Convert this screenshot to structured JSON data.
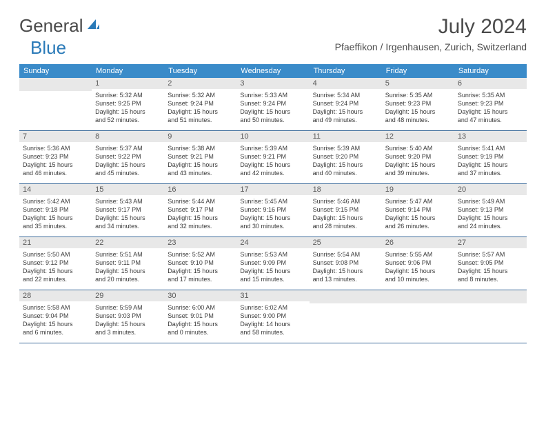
{
  "logo": {
    "general": "General",
    "blue": "Blue"
  },
  "title": "July 2024",
  "location": "Pfaeffikon / Irgenhausen, Zurich, Switzerland",
  "weekdays": [
    "Sunday",
    "Monday",
    "Tuesday",
    "Wednesday",
    "Thursday",
    "Friday",
    "Saturday"
  ],
  "colors": {
    "header_bg": "#3a8bc9",
    "daynum_bg": "#e8e8e8",
    "divider": "#3a6a9a",
    "text": "#4a4a4a",
    "logo_blue": "#2a7ab8"
  },
  "weeks": [
    [
      {
        "num": "",
        "sunrise": "",
        "sunset": "",
        "daylight1": "",
        "daylight2": ""
      },
      {
        "num": "1",
        "sunrise": "Sunrise: 5:32 AM",
        "sunset": "Sunset: 9:25 PM",
        "daylight1": "Daylight: 15 hours",
        "daylight2": "and 52 minutes."
      },
      {
        "num": "2",
        "sunrise": "Sunrise: 5:32 AM",
        "sunset": "Sunset: 9:24 PM",
        "daylight1": "Daylight: 15 hours",
        "daylight2": "and 51 minutes."
      },
      {
        "num": "3",
        "sunrise": "Sunrise: 5:33 AM",
        "sunset": "Sunset: 9:24 PM",
        "daylight1": "Daylight: 15 hours",
        "daylight2": "and 50 minutes."
      },
      {
        "num": "4",
        "sunrise": "Sunrise: 5:34 AM",
        "sunset": "Sunset: 9:24 PM",
        "daylight1": "Daylight: 15 hours",
        "daylight2": "and 49 minutes."
      },
      {
        "num": "5",
        "sunrise": "Sunrise: 5:35 AM",
        "sunset": "Sunset: 9:23 PM",
        "daylight1": "Daylight: 15 hours",
        "daylight2": "and 48 minutes."
      },
      {
        "num": "6",
        "sunrise": "Sunrise: 5:35 AM",
        "sunset": "Sunset: 9:23 PM",
        "daylight1": "Daylight: 15 hours",
        "daylight2": "and 47 minutes."
      }
    ],
    [
      {
        "num": "7",
        "sunrise": "Sunrise: 5:36 AM",
        "sunset": "Sunset: 9:23 PM",
        "daylight1": "Daylight: 15 hours",
        "daylight2": "and 46 minutes."
      },
      {
        "num": "8",
        "sunrise": "Sunrise: 5:37 AM",
        "sunset": "Sunset: 9:22 PM",
        "daylight1": "Daylight: 15 hours",
        "daylight2": "and 45 minutes."
      },
      {
        "num": "9",
        "sunrise": "Sunrise: 5:38 AM",
        "sunset": "Sunset: 9:21 PM",
        "daylight1": "Daylight: 15 hours",
        "daylight2": "and 43 minutes."
      },
      {
        "num": "10",
        "sunrise": "Sunrise: 5:39 AM",
        "sunset": "Sunset: 9:21 PM",
        "daylight1": "Daylight: 15 hours",
        "daylight2": "and 42 minutes."
      },
      {
        "num": "11",
        "sunrise": "Sunrise: 5:39 AM",
        "sunset": "Sunset: 9:20 PM",
        "daylight1": "Daylight: 15 hours",
        "daylight2": "and 40 minutes."
      },
      {
        "num": "12",
        "sunrise": "Sunrise: 5:40 AM",
        "sunset": "Sunset: 9:20 PM",
        "daylight1": "Daylight: 15 hours",
        "daylight2": "and 39 minutes."
      },
      {
        "num": "13",
        "sunrise": "Sunrise: 5:41 AM",
        "sunset": "Sunset: 9:19 PM",
        "daylight1": "Daylight: 15 hours",
        "daylight2": "and 37 minutes."
      }
    ],
    [
      {
        "num": "14",
        "sunrise": "Sunrise: 5:42 AM",
        "sunset": "Sunset: 9:18 PM",
        "daylight1": "Daylight: 15 hours",
        "daylight2": "and 35 minutes."
      },
      {
        "num": "15",
        "sunrise": "Sunrise: 5:43 AM",
        "sunset": "Sunset: 9:17 PM",
        "daylight1": "Daylight: 15 hours",
        "daylight2": "and 34 minutes."
      },
      {
        "num": "16",
        "sunrise": "Sunrise: 5:44 AM",
        "sunset": "Sunset: 9:17 PM",
        "daylight1": "Daylight: 15 hours",
        "daylight2": "and 32 minutes."
      },
      {
        "num": "17",
        "sunrise": "Sunrise: 5:45 AM",
        "sunset": "Sunset: 9:16 PM",
        "daylight1": "Daylight: 15 hours",
        "daylight2": "and 30 minutes."
      },
      {
        "num": "18",
        "sunrise": "Sunrise: 5:46 AM",
        "sunset": "Sunset: 9:15 PM",
        "daylight1": "Daylight: 15 hours",
        "daylight2": "and 28 minutes."
      },
      {
        "num": "19",
        "sunrise": "Sunrise: 5:47 AM",
        "sunset": "Sunset: 9:14 PM",
        "daylight1": "Daylight: 15 hours",
        "daylight2": "and 26 minutes."
      },
      {
        "num": "20",
        "sunrise": "Sunrise: 5:49 AM",
        "sunset": "Sunset: 9:13 PM",
        "daylight1": "Daylight: 15 hours",
        "daylight2": "and 24 minutes."
      }
    ],
    [
      {
        "num": "21",
        "sunrise": "Sunrise: 5:50 AM",
        "sunset": "Sunset: 9:12 PM",
        "daylight1": "Daylight: 15 hours",
        "daylight2": "and 22 minutes."
      },
      {
        "num": "22",
        "sunrise": "Sunrise: 5:51 AM",
        "sunset": "Sunset: 9:11 PM",
        "daylight1": "Daylight: 15 hours",
        "daylight2": "and 20 minutes."
      },
      {
        "num": "23",
        "sunrise": "Sunrise: 5:52 AM",
        "sunset": "Sunset: 9:10 PM",
        "daylight1": "Daylight: 15 hours",
        "daylight2": "and 17 minutes."
      },
      {
        "num": "24",
        "sunrise": "Sunrise: 5:53 AM",
        "sunset": "Sunset: 9:09 PM",
        "daylight1": "Daylight: 15 hours",
        "daylight2": "and 15 minutes."
      },
      {
        "num": "25",
        "sunrise": "Sunrise: 5:54 AM",
        "sunset": "Sunset: 9:08 PM",
        "daylight1": "Daylight: 15 hours",
        "daylight2": "and 13 minutes."
      },
      {
        "num": "26",
        "sunrise": "Sunrise: 5:55 AM",
        "sunset": "Sunset: 9:06 PM",
        "daylight1": "Daylight: 15 hours",
        "daylight2": "and 10 minutes."
      },
      {
        "num": "27",
        "sunrise": "Sunrise: 5:57 AM",
        "sunset": "Sunset: 9:05 PM",
        "daylight1": "Daylight: 15 hours",
        "daylight2": "and 8 minutes."
      }
    ],
    [
      {
        "num": "28",
        "sunrise": "Sunrise: 5:58 AM",
        "sunset": "Sunset: 9:04 PM",
        "daylight1": "Daylight: 15 hours",
        "daylight2": "and 6 minutes."
      },
      {
        "num": "29",
        "sunrise": "Sunrise: 5:59 AM",
        "sunset": "Sunset: 9:03 PM",
        "daylight1": "Daylight: 15 hours",
        "daylight2": "and 3 minutes."
      },
      {
        "num": "30",
        "sunrise": "Sunrise: 6:00 AM",
        "sunset": "Sunset: 9:01 PM",
        "daylight1": "Daylight: 15 hours",
        "daylight2": "and 0 minutes."
      },
      {
        "num": "31",
        "sunrise": "Sunrise: 6:02 AM",
        "sunset": "Sunset: 9:00 PM",
        "daylight1": "Daylight: 14 hours",
        "daylight2": "and 58 minutes."
      },
      {
        "num": "",
        "sunrise": "",
        "sunset": "",
        "daylight1": "",
        "daylight2": ""
      },
      {
        "num": "",
        "sunrise": "",
        "sunset": "",
        "daylight1": "",
        "daylight2": ""
      },
      {
        "num": "",
        "sunrise": "",
        "sunset": "",
        "daylight1": "",
        "daylight2": ""
      }
    ]
  ]
}
